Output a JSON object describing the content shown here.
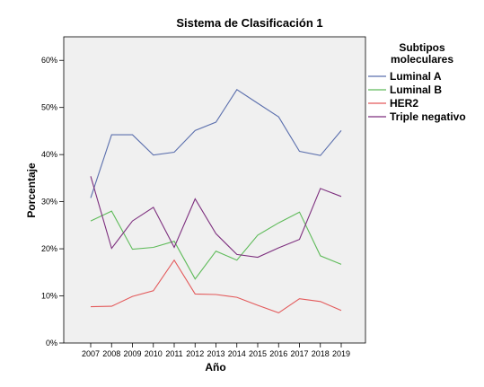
{
  "chart_data": {
    "type": "line",
    "title": "Sistema de Clasificación 1",
    "xlabel": "Año",
    "ylabel": "Porcentaje",
    "x": [
      "2007",
      "2008",
      "2009",
      "2010",
      "2011",
      "2012",
      "2013",
      "2014",
      "2015",
      "2016",
      "2017",
      "2018",
      "2019"
    ],
    "yticks": [
      "0%",
      "10%",
      "20%",
      "30%",
      "40%",
      "50%",
      "60%"
    ],
    "ylim": [
      0,
      65
    ],
    "grid": false,
    "legend": {
      "title_lines": [
        "Subtipos",
        "moleculares"
      ],
      "placement": "right"
    },
    "series": [
      {
        "name": "Luminal A",
        "color": "#5b6fad",
        "values": [
          30.8,
          44.2,
          44.2,
          39.9,
          40.5,
          45.1,
          46.9,
          53.8,
          50.9,
          48.0,
          40.7,
          39.8,
          45.1
        ]
      },
      {
        "name": "Luminal B",
        "color": "#5fbb5a",
        "values": [
          25.9,
          28.0,
          19.9,
          20.3,
          21.6,
          13.6,
          19.5,
          17.6,
          22.9,
          25.5,
          27.8,
          18.5,
          16.7
        ]
      },
      {
        "name": "HER2",
        "color": "#e3595a",
        "values": [
          7.7,
          7.8,
          9.9,
          11.1,
          17.6,
          10.4,
          10.3,
          9.7,
          8.0,
          6.4,
          9.4,
          8.8,
          6.9
        ]
      },
      {
        "name": "Triple negativo",
        "color": "#7d2f7e",
        "values": [
          35.4,
          20.1,
          25.9,
          28.8,
          20.3,
          30.6,
          23.2,
          18.8,
          18.2,
          20.2,
          22.0,
          32.8,
          31.1
        ]
      }
    ]
  }
}
